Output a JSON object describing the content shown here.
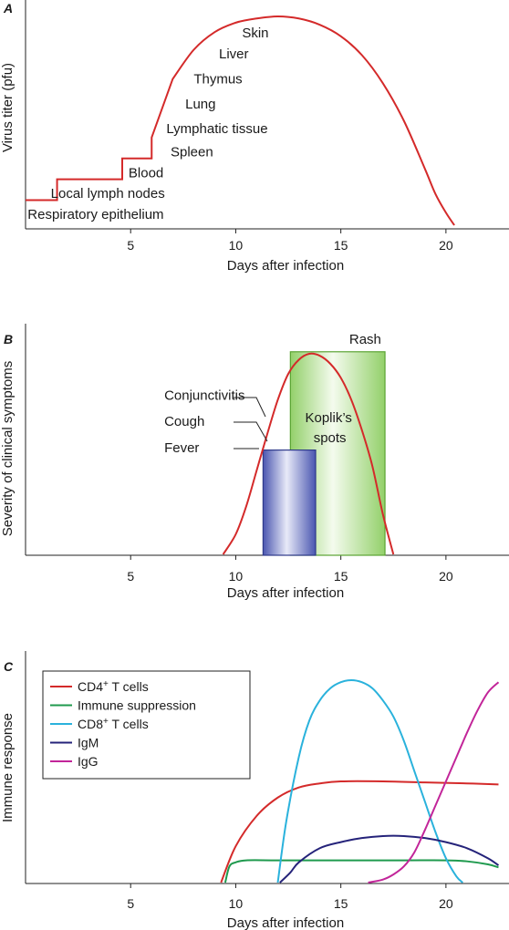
{
  "chart_data": [
    {
      "panel": "A",
      "type": "line",
      "xlabel": "Days after infection",
      "ylabel": "Virus titer (pfu)",
      "xlim": [
        0,
        23
      ],
      "x_ticks": [
        5,
        10,
        15,
        20
      ],
      "series": [
        {
          "color": "#d42a2a",
          "points": [
            [
              0,
              0.12
            ],
            [
              1.5,
              0.12
            ],
            [
              1.5,
              0.22
            ],
            [
              4.6,
              0.22
            ],
            [
              4.6,
              0.32
            ],
            [
              6,
              0.32
            ],
            [
              6,
              0.42
            ],
            [
              7,
              0.7
            ],
            [
              8,
              0.84
            ],
            [
              9,
              0.925
            ],
            [
              10,
              0.97
            ],
            [
              11,
              0.99
            ],
            [
              12,
              1.0
            ],
            [
              13,
              0.99
            ],
            [
              14,
              0.96
            ],
            [
              15,
              0.905
            ],
            [
              16,
              0.815
            ],
            [
              17,
              0.68
            ],
            [
              18,
              0.5
            ],
            [
              19,
              0.27
            ],
            [
              19.5,
              0.15
            ],
            [
              20,
              0.06
            ],
            [
              20.4,
              0.0
            ]
          ]
        }
      ],
      "annotations": [
        {
          "text": "Respiratory epithelium",
          "x": 0.1,
          "y": 0.03
        },
        {
          "text": "Local lymph nodes",
          "x": 1.2,
          "y": 0.13
        },
        {
          "text": "Blood",
          "x": 4.9,
          "y": 0.23
        },
        {
          "text": "Spleen",
          "x": 6.9,
          "y": 0.33
        },
        {
          "text": "Lymphatic tissue",
          "x": 6.7,
          "y": 0.44
        },
        {
          "text": "Lung",
          "x": 7.6,
          "y": 0.56
        },
        {
          "text": "Thymus",
          "x": 8.0,
          "y": 0.68
        },
        {
          "text": "Liver",
          "x": 9.2,
          "y": 0.8
        },
        {
          "text": "Skin",
          "x": 10.3,
          "y": 0.9
        }
      ]
    },
    {
      "panel": "B",
      "type": "line",
      "xlabel": "Days after infection",
      "ylabel": "Severity of clinical symptoms",
      "xlim": [
        0,
        23
      ],
      "x_ticks": [
        5,
        10,
        15,
        20
      ],
      "series": [
        {
          "color": "#d42a2a",
          "points": [
            [
              9.4,
              0.0
            ],
            [
              10,
              0.1
            ],
            [
              10.5,
              0.24
            ],
            [
              11,
              0.42
            ],
            [
              11.5,
              0.6
            ],
            [
              12,
              0.77
            ],
            [
              12.5,
              0.9
            ],
            [
              13,
              0.97
            ],
            [
              13.5,
              1.0
            ],
            [
              14,
              0.99
            ],
            [
              14.5,
              0.95
            ],
            [
              15,
              0.88
            ],
            [
              15.5,
              0.77
            ],
            [
              16,
              0.62
            ],
            [
              16.5,
              0.44
            ],
            [
              17,
              0.2
            ],
            [
              17.5,
              0.0
            ]
          ]
        }
      ],
      "boxes": [
        {
          "label": "Fever",
          "x_start": 11.3,
          "x_end": 13.8,
          "height": 0.52,
          "color": "#4a56b0"
        },
        {
          "label": "Rash",
          "inner_label": "Koplik’s spots",
          "x_start": 12.6,
          "x_end": 17.1,
          "height": 1.01,
          "color": "#93d06a"
        }
      ],
      "annotations": [
        {
          "text": "Conjunctivitis",
          "x": 6.6,
          "y": 0.77
        },
        {
          "text": "Cough",
          "x": 6.6,
          "y": 0.64
        },
        {
          "text": "Fever",
          "x": 6.6,
          "y": 0.51
        },
        {
          "text": "Rash",
          "x": 15.4,
          "y": 1.05
        },
        {
          "text": "Koplik’s",
          "x": 13.3,
          "y": 0.66
        },
        {
          "text": "spots",
          "x": 13.7,
          "y": 0.56
        }
      ]
    },
    {
      "panel": "C",
      "type": "line",
      "xlabel": "Days after infection",
      "ylabel": "Immune response",
      "xlim": [
        0,
        23
      ],
      "x_ticks": [
        5,
        10,
        15,
        20
      ],
      "legend": "top-left",
      "series": [
        {
          "name_html": [
            "CD4",
            "+",
            " T cells"
          ],
          "color": "#d42a2a",
          "points": [
            [
              9.3,
              0
            ],
            [
              10,
              0.18
            ],
            [
              11,
              0.33
            ],
            [
              12,
              0.42
            ],
            [
              13,
              0.47
            ],
            [
              14,
              0.49
            ],
            [
              15,
              0.5
            ],
            [
              17,
              0.5
            ],
            [
              19,
              0.495
            ],
            [
              21,
              0.49
            ],
            [
              22.5,
              0.485
            ]
          ]
        },
        {
          "name_html": [
            "Immune suppression",
            "",
            ""
          ],
          "color": "#1f9a4e",
          "points": [
            [
              9.5,
              0
            ],
            [
              9.7,
              0.08
            ],
            [
              10,
              0.1
            ],
            [
              10.5,
              0.11
            ],
            [
              12,
              0.11
            ],
            [
              15,
              0.11
            ],
            [
              18,
              0.11
            ],
            [
              20,
              0.11
            ],
            [
              21,
              0.105
            ],
            [
              22,
              0.09
            ],
            [
              22.5,
              0.075
            ]
          ]
        },
        {
          "name_html": [
            "CD8",
            "+",
            " T cells"
          ],
          "color": "#2ab2dc",
          "points": [
            [
              12,
              0
            ],
            [
              12.4,
              0.3
            ],
            [
              13,
              0.62
            ],
            [
              13.5,
              0.8
            ],
            [
              14,
              0.9
            ],
            [
              14.5,
              0.96
            ],
            [
              15,
              0.99
            ],
            [
              15.5,
              1.0
            ],
            [
              16,
              0.99
            ],
            [
              16.5,
              0.96
            ],
            [
              17,
              0.9
            ],
            [
              17.5,
              0.82
            ],
            [
              18,
              0.7
            ],
            [
              18.5,
              0.55
            ],
            [
              19,
              0.4
            ],
            [
              19.5,
              0.25
            ],
            [
              20,
              0.12
            ],
            [
              20.5,
              0.03
            ],
            [
              20.8,
              0
            ]
          ]
        },
        {
          "name_html": [
            "IgM",
            "",
            ""
          ],
          "color": "#25237a",
          "points": [
            [
              12.1,
              0
            ],
            [
              12.6,
              0.05
            ],
            [
              13,
              0.1
            ],
            [
              14,
              0.17
            ],
            [
              15,
              0.2
            ],
            [
              16,
              0.22
            ],
            [
              17,
              0.23
            ],
            [
              18,
              0.23
            ],
            [
              19,
              0.22
            ],
            [
              20,
              0.2
            ],
            [
              21,
              0.17
            ],
            [
              22,
              0.12
            ],
            [
              22.5,
              0.085
            ]
          ]
        },
        {
          "name_html": [
            "IgG",
            "",
            ""
          ],
          "color": "#c22599",
          "points": [
            [
              16.3,
              0
            ],
            [
              17,
              0.015
            ],
            [
              17.5,
              0.04
            ],
            [
              18,
              0.08
            ],
            [
              18.5,
              0.15
            ],
            [
              19,
              0.26
            ],
            [
              19.5,
              0.38
            ],
            [
              20,
              0.5
            ],
            [
              20.5,
              0.62
            ],
            [
              21,
              0.74
            ],
            [
              21.5,
              0.85
            ],
            [
              22,
              0.94
            ],
            [
              22.5,
              0.99
            ]
          ]
        }
      ]
    }
  ]
}
